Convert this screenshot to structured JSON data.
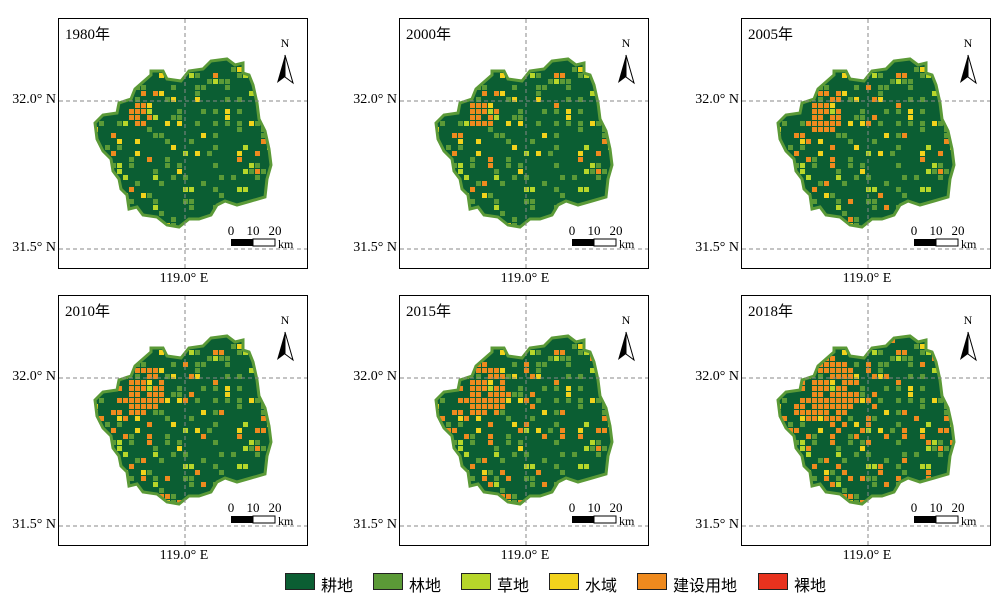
{
  "panels": [
    {
      "year": "1980年",
      "urban": 0.08,
      "north_label": "N"
    },
    {
      "year": "2000年",
      "urban": 0.12,
      "north_label": "N"
    },
    {
      "year": "2005年",
      "urban": 0.2,
      "north_label": "N"
    },
    {
      "year": "2010年",
      "urban": 0.26,
      "north_label": "N"
    },
    {
      "year": "2015年",
      "urban": 0.3,
      "north_label": "N"
    },
    {
      "year": "2018年",
      "urban": 0.4,
      "north_label": "N"
    }
  ],
  "axes": {
    "lat_top": "32.0° N",
    "lat_bottom": "31.5° N",
    "lon": "119.0° E"
  },
  "scalebar": {
    "t0": "0",
    "t1": "10",
    "t2": "20",
    "unit": "km"
  },
  "legend": [
    {
      "label": "耕地",
      "color": "#0b5e33"
    },
    {
      "label": "林地",
      "color": "#5b9a37"
    },
    {
      "label": "草地",
      "color": "#b7d62a"
    },
    {
      "label": "水域",
      "color": "#f2d21c"
    },
    {
      "label": "建设用地",
      "color": "#ef8a1e"
    },
    {
      "label": "裸地",
      "color": "#e8321e"
    }
  ]
}
